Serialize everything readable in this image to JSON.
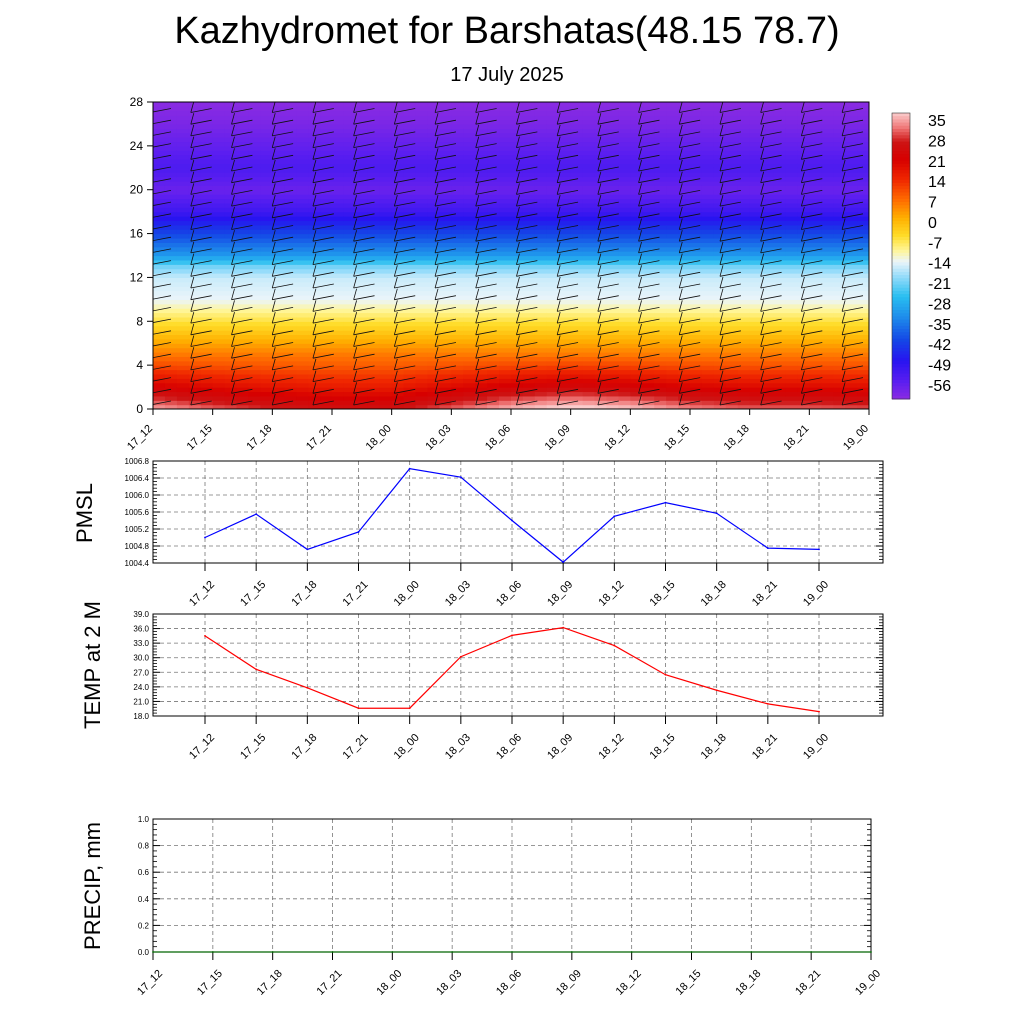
{
  "page": {
    "title": "Kazhydromet for Barshatas(48.15 78.7)",
    "subtitle": "17 July 2025"
  },
  "chart_data": [
    {
      "type": "heatmap",
      "title": "",
      "xlabel": "",
      "ylabel": "",
      "x_tick_labels": [
        "17_12",
        "17_15",
        "17_18",
        "17_21",
        "18_00",
        "18_03",
        "18_06",
        "18_09",
        "18_12",
        "18_15",
        "18_18",
        "18_21",
        "19_00"
      ],
      "y_ticks": [
        0,
        4,
        8,
        12,
        16,
        20,
        24,
        28
      ],
      "ylim": [
        0,
        28
      ],
      "colorbar_labels": [
        "35",
        "28",
        "21",
        "14",
        "7",
        "0",
        "-7",
        "-14",
        "-21",
        "-28",
        "-35",
        "-42",
        "-49",
        "-56"
      ],
      "colorbar_range": [
        -60,
        38
      ],
      "levels_km": [
        0,
        1,
        2,
        3,
        4,
        6,
        8,
        10,
        12,
        13,
        14,
        16,
        18,
        20,
        22,
        24,
        26,
        28
      ],
      "base_profile_c": [
        33,
        27,
        21,
        16,
        11,
        3,
        -5,
        -13,
        -15,
        -20,
        -30,
        -40,
        -50,
        -56,
        -52,
        -55,
        -58,
        -60
      ],
      "surface_anomaly_c": [
        3,
        -1,
        -4,
        -6,
        -6,
        -1,
        4,
        7,
        5,
        1,
        -1,
        -1,
        -2
      ],
      "wind_barbs": "shown"
    },
    {
      "type": "line",
      "ylabel": "PMSL",
      "x_tick_labels": [
        "17_12",
        "17_15",
        "17_18",
        "17_21",
        "18_00",
        "18_03",
        "18_06",
        "18_09",
        "18_12",
        "18_15",
        "18_18",
        "18_21",
        "19_00"
      ],
      "y_tick_labels": [
        "1006.8",
        "1006.4",
        "1006.0",
        "1005.6",
        "1005.2",
        "1004.8",
        "1004.4"
      ],
      "ylim": [
        1004.4,
        1006.8
      ],
      "grid": true,
      "series": [
        {
          "color": "#0000ff",
          "values": [
            1005.0,
            1005.55,
            1004.72,
            1005.13,
            1006.62,
            1006.42,
            1005.4,
            1004.42,
            1005.5,
            1005.82,
            1005.57,
            1004.75,
            1004.72
          ]
        }
      ]
    },
    {
      "type": "line",
      "ylabel": "TEMP at 2 M",
      "x_tick_labels": [
        "17_12",
        "17_15",
        "17_18",
        "17_21",
        "18_00",
        "18_03",
        "18_06",
        "18_09",
        "18_12",
        "18_15",
        "18_18",
        "18_21",
        "19_00"
      ],
      "y_tick_labels": [
        "39.0",
        "36.0",
        "33.0",
        "30.0",
        "27.0",
        "24.0",
        "21.0",
        "18.0"
      ],
      "ylim": [
        18.0,
        39.0
      ],
      "grid": true,
      "series": [
        {
          "color": "#ff0000",
          "values": [
            34.5,
            27.6,
            23.8,
            19.6,
            19.6,
            30.2,
            34.6,
            36.2,
            32.5,
            26.5,
            23.3,
            20.5,
            18.9
          ]
        }
      ]
    },
    {
      "type": "line",
      "ylabel": "PRECIP, mm",
      "x_tick_labels": [
        "17_12",
        "17_15",
        "17_18",
        "17_21",
        "18_00",
        "18_03",
        "18_06",
        "18_09",
        "18_12",
        "18_15",
        "18_18",
        "18_21",
        "19_00"
      ],
      "y_tick_labels": [
        "1.0",
        "0.8",
        "0.6",
        "0.4",
        "0.2",
        "0.0"
      ],
      "ylim": [
        0,
        1.0
      ],
      "grid": true,
      "series": [
        {
          "color": "#006400",
          "values": [
            0,
            0,
            0,
            0,
            0,
            0,
            0,
            0,
            0,
            0,
            0,
            0,
            0
          ]
        }
      ]
    }
  ]
}
